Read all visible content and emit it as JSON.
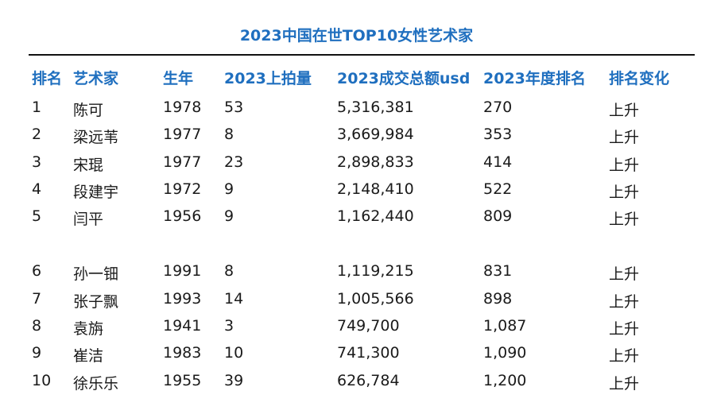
{
  "title": "2023中国在世TOP10女性艺术家",
  "headers": {
    "rank": "排名",
    "artist": "艺术家",
    "born": "生年",
    "lots": "2023上拍量",
    "turnover": "2023成交总额usd",
    "annual_rank": "2023年度排名",
    "change": "排名变化"
  },
  "rows": [
    {
      "rank": "1",
      "artist": "陈可",
      "born": "1978",
      "lots": "53",
      "turnover": "5,316,381",
      "annual_rank": "270",
      "change": "上升"
    },
    {
      "rank": "2",
      "artist": "梁远苇",
      "born": "1977",
      "lots": "8",
      "turnover": "3,669,984",
      "annual_rank": "353",
      "change": "上升"
    },
    {
      "rank": "3",
      "artist": "宋琨",
      "born": "1977",
      "lots": "23",
      "turnover": "2,898,833",
      "annual_rank": "414",
      "change": "上升"
    },
    {
      "rank": "4",
      "artist": "段建宇",
      "born": "1972",
      "lots": "9",
      "turnover": "2,148,410",
      "annual_rank": "522",
      "change": "上升"
    },
    {
      "rank": "5",
      "artist": "闫平",
      "born": "1956",
      "lots": "9",
      "turnover": "1,162,440",
      "annual_rank": "809",
      "change": "上升"
    },
    {
      "rank": "6",
      "artist": "孙一钿",
      "born": "1991",
      "lots": "8",
      "turnover": "1,119,215",
      "annual_rank": "831",
      "change": "上升"
    },
    {
      "rank": "7",
      "artist": "张子飘",
      "born": "1993",
      "lots": "14",
      "turnover": "1,005,566",
      "annual_rank": "898",
      "change": "上升"
    },
    {
      "rank": "8",
      "artist": "袁旃",
      "born": "1941",
      "lots": "3",
      "turnover": "749,700",
      "annual_rank": "1,087",
      "change": "上升"
    },
    {
      "rank": "9",
      "artist": "崔洁",
      "born": "1983",
      "lots": "10",
      "turnover": "741,300",
      "annual_rank": "1,090",
      "change": "上升"
    },
    {
      "rank": "10",
      "artist": "徐乐乐",
      "born": "1955",
      "lots": "39",
      "turnover": "626,784",
      "annual_rank": "1,200",
      "change": "上升"
    }
  ]
}
